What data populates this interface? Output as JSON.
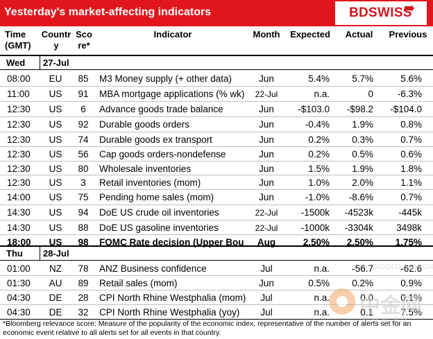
{
  "header": {
    "title": "Yesterday's market-affecting indicators",
    "logo": "BDSWISS",
    "brand_color": "#e0161c"
  },
  "columns": {
    "time": [
      "Time",
      "(GMT)"
    ],
    "country": [
      "Countr",
      "y"
    ],
    "score": [
      "Sco",
      "re*"
    ],
    "indicator": "Indicator",
    "month": "Month",
    "expected": "Expected",
    "actual": "Actual",
    "previous": "Previous"
  },
  "days": [
    {
      "weekday": "Wed",
      "date": "27-Jul"
    },
    {
      "weekday": "Thu",
      "date": "28-Jul"
    }
  ],
  "rows_wed": [
    {
      "time": "08:00",
      "country": "EU",
      "score": "85",
      "indicator": "M3 Money supply (+ other data)",
      "month": "Jun",
      "expected": "5.4%",
      "actual": "5.7%",
      "previous": "5.6%"
    },
    {
      "time": "11:00",
      "country": "US",
      "score": "91",
      "indicator": "MBA mortgage applications (% wk)",
      "month": "22-Jul",
      "expected": "n.a.",
      "actual": "0",
      "previous": "-6.3%"
    },
    {
      "time": "12:30",
      "country": "US",
      "score": "6",
      "indicator": "Advance goods trade balance",
      "month": "Jun",
      "expected": "-$103.0",
      "actual": "-$98.2",
      "previous": "-$104.0"
    },
    {
      "time": "12:30",
      "country": "US",
      "score": "92",
      "indicator": "Durable goods orders",
      "month": "Jun",
      "expected": "-0.4%",
      "actual": "1.9%",
      "previous": "0.8%"
    },
    {
      "time": "12:30",
      "country": "US",
      "score": "74",
      "indicator": "Durable goods ex transport",
      "month": "Jun",
      "expected": "0.2%",
      "actual": "0.3%",
      "previous": "0.7%"
    },
    {
      "time": "12:30",
      "country": "US",
      "score": "56",
      "indicator": "Cap goods orders-nondefense",
      "month": "Jun",
      "expected": "0.2%",
      "actual": "0.5%",
      "previous": "0.6%"
    },
    {
      "time": "12:30",
      "country": "US",
      "score": "80",
      "indicator": "Wholesale inventories",
      "month": "Jun",
      "expected": "1.5%",
      "actual": "1.9%",
      "previous": "1.8%"
    },
    {
      "time": "12:30",
      "country": "US",
      "score": "3",
      "indicator": "Retail inventories (mom)",
      "month": "Jun",
      "expected": "1.0%",
      "actual": "2.0%",
      "previous": "1.1%"
    },
    {
      "time": "14:00",
      "country": "US",
      "score": "75",
      "indicator": "Pending home sales (mom)",
      "month": "Jun",
      "expected": "-1.0%",
      "actual": "-8.6%",
      "previous": "0.7%"
    },
    {
      "time": "14:30",
      "country": "US",
      "score": "94",
      "indicator": "DoE US crude oil inventories",
      "month": "22-Jul",
      "expected": "-1500k",
      "actual": "-4523k",
      "previous": "-445k"
    },
    {
      "time": "14:30",
      "country": "US",
      "score": "88",
      "indicator": "DoE US gasoline inventories",
      "month": "22-Jul",
      "expected": "-1000k",
      "actual": "-3304k",
      "previous": "3498k"
    },
    {
      "time": "18:00",
      "country": "US",
      "score": "98",
      "indicator": "FOMC Rate decision (Upper Bou",
      "month": "Aug",
      "expected": "2.50%",
      "actual": "2.50%",
      "previous": "1.75%"
    }
  ],
  "rows_thu": [
    {
      "time": "01:00",
      "country": "NZ",
      "score": "78",
      "indicator": "ANZ Business confidence",
      "month": "Jul",
      "expected": "n.a.",
      "actual": "-56.7",
      "previous": "-62.6"
    },
    {
      "time": "01:30",
      "country": "AU",
      "score": "89",
      "indicator": "Retail sales (mom)",
      "month": "Jun",
      "expected": "0.5%",
      "actual": "0.2%",
      "previous": "0.9%"
    },
    {
      "time": "04:30",
      "country": "DE",
      "score": "28",
      "indicator": "CPI North Rhine Westphalia (mom)",
      "month": "Jul",
      "expected": "n.a.",
      "actual": "0.0",
      "previous": "0.1%"
    },
    {
      "time": "04:30",
      "country": "DE",
      "score": "32",
      "indicator": "CPI North Rhine Westphalia (yoy)",
      "month": "Jul",
      "expected": "n.a.",
      "actual": "0.1",
      "previous": "7.5%"
    }
  ],
  "footnote": "*Bloomberg relevance score: Measure of the popularity of the economic index, representative of the number of alerts set for an economic event relative to all alerts set for all events in that country.",
  "watermark": {
    "cn": "中金网",
    "sub": "财经新媒体",
    "en": "CNGOLD.COM.CN"
  }
}
